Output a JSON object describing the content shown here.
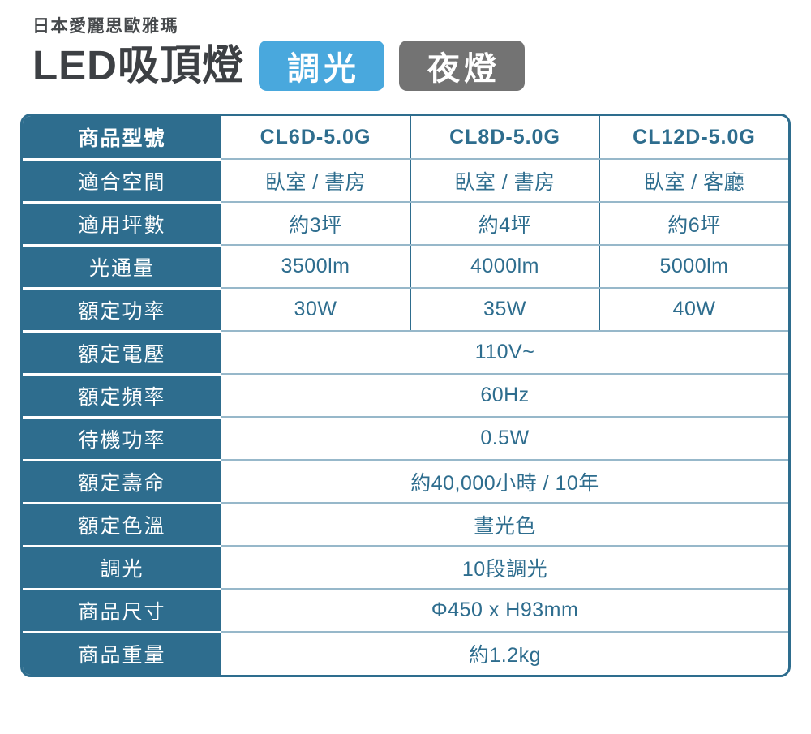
{
  "header": {
    "brand": "日本愛麗思歐雅瑪",
    "title": "LED吸頂燈",
    "badges": [
      {
        "label": "調光",
        "color": "#49a8dd"
      },
      {
        "label": "夜燈",
        "color": "#737373"
      }
    ]
  },
  "colors": {
    "accent": "#2e6d8e",
    "data_divider": "#97b8ca",
    "label_text": "#ffffff",
    "title_text": "#3d4044"
  },
  "table": {
    "rows": [
      {
        "label": "商品型號",
        "header": true,
        "values": [
          "CL6D-5.0G",
          "CL8D-5.0G",
          "CL12D-5.0G"
        ]
      },
      {
        "label": "適合空間",
        "values": [
          "臥室 / 書房",
          "臥室 / 書房",
          "臥室 / 客廳"
        ]
      },
      {
        "label": "適用坪數",
        "values": [
          "約3坪",
          "約4坪",
          "約6坪"
        ]
      },
      {
        "label": "光通量",
        "values": [
          "3500lm",
          "4000lm",
          "5000lm"
        ]
      },
      {
        "label": "額定功率",
        "values": [
          "30W",
          "35W",
          "40W"
        ]
      },
      {
        "label": "額定電壓",
        "values": [
          "110V~"
        ]
      },
      {
        "label": "額定頻率",
        "values": [
          "60Hz"
        ]
      },
      {
        "label": "待機功率",
        "values": [
          "0.5W"
        ]
      },
      {
        "label": "額定壽命",
        "values": [
          "約40,000小時 / 10年"
        ]
      },
      {
        "label": "額定色溫",
        "values": [
          "晝光色"
        ]
      },
      {
        "label": "調光",
        "values": [
          "10段調光"
        ]
      },
      {
        "label": "商品尺寸",
        "values": [
          "Φ450 x H93mm"
        ]
      },
      {
        "label": "商品重量",
        "values": [
          "約1.2kg"
        ]
      }
    ]
  }
}
